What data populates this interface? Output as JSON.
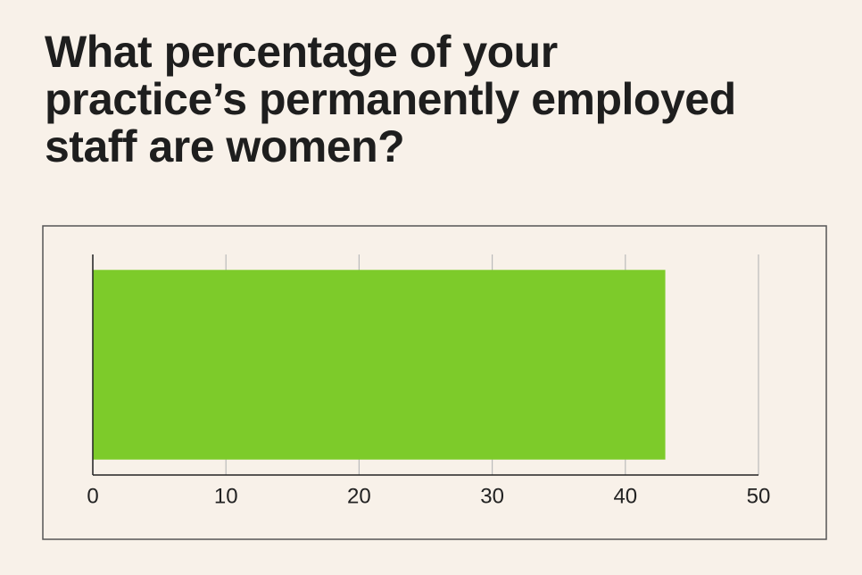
{
  "chart_data": {
    "type": "hbar",
    "title": "What percentage of your practice’s permanently employed staff are women?",
    "values": [
      43
    ],
    "color": "#7dcb2a",
    "xlim": [
      0,
      50
    ],
    "xticks": [
      0,
      10,
      20,
      30,
      40,
      50
    ],
    "grid": true
  }
}
